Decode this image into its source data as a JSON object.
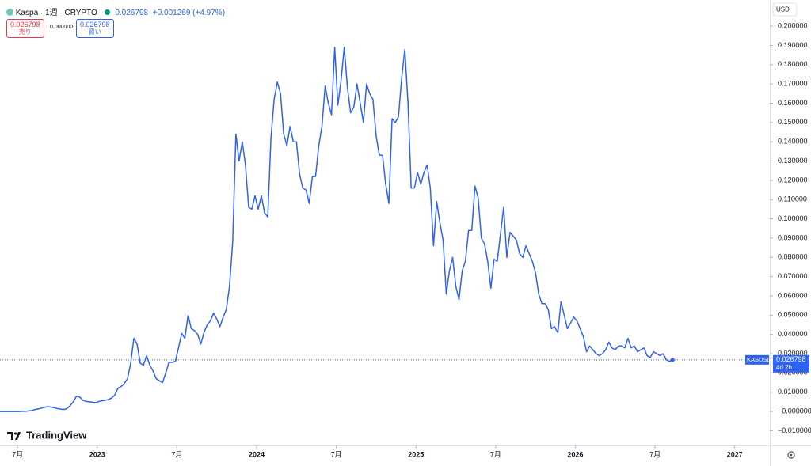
{
  "chart_data": {
    "type": "line",
    "title": "Kaspa · 1週 · CRYPTO",
    "last_price": "0.026798",
    "change": "+0.001269 (+4.97%)",
    "sell_price": "0.026798",
    "sell_label": "売り",
    "spread": "0.000000",
    "buy_price": "0.026798",
    "buy_label": "買い",
    "currency": "USD",
    "ticker": "KASUSD",
    "countdown": "4d 2h",
    "brand": "TradingView",
    "grid": false,
    "x": [
      2022.39,
      2022.41,
      2022.43,
      2022.45,
      2022.47,
      2022.49,
      2022.51,
      2022.53,
      2022.55,
      2022.57,
      2022.59,
      2022.61,
      2022.63,
      2022.65,
      2022.67,
      2022.69,
      2022.71,
      2022.73,
      2022.75,
      2022.77,
      2022.79,
      2022.81,
      2022.83,
      2022.85,
      2022.87,
      2022.89,
      2022.91,
      2022.93,
      2022.95,
      2022.97,
      2022.99,
      2023.01,
      2023.03,
      2023.05,
      2023.07,
      2023.09,
      2023.11,
      2023.13,
      2023.15,
      2023.17,
      2023.19,
      2023.21,
      2023.23,
      2023.25,
      2023.27,
      2023.29,
      2023.31,
      2023.33,
      2023.35,
      2023.37,
      2023.39,
      2023.41,
      2023.43,
      2023.45,
      2023.47,
      2023.49,
      2023.51,
      2023.53,
      2023.55,
      2023.57,
      2023.59,
      2023.61,
      2023.63,
      2023.65,
      2023.67,
      2023.69,
      2023.71,
      2023.73,
      2023.75,
      2023.77,
      2023.79,
      2023.81,
      2023.83,
      2023.85,
      2023.87,
      2023.89,
      2023.91,
      2023.93,
      2023.95,
      2023.97,
      2023.99,
      2024.01,
      2024.03,
      2024.05,
      2024.07,
      2024.09,
      2024.11,
      2024.13,
      2024.15,
      2024.17,
      2024.19,
      2024.21,
      2024.23,
      2024.25,
      2024.27,
      2024.29,
      2024.31,
      2024.33,
      2024.35,
      2024.37,
      2024.39,
      2024.41,
      2024.43,
      2024.45,
      2024.47,
      2024.49,
      2024.51,
      2024.53,
      2024.55,
      2024.57,
      2024.59,
      2024.61,
      2024.63,
      2024.65,
      2024.67,
      2024.69,
      2024.71,
      2024.73,
      2024.75,
      2024.77,
      2024.79,
      2024.81,
      2024.83,
      2024.85,
      2024.87,
      2024.89,
      2024.91,
      2024.93,
      2024.95,
      2024.97,
      2024.99,
      2025.01,
      2025.03,
      2025.05,
      2025.07,
      2025.09,
      2025.11,
      2025.13,
      2025.15,
      2025.17,
      2025.19,
      2025.21,
      2025.23,
      2025.25,
      2025.27,
      2025.29,
      2025.31,
      2025.33,
      2025.35,
      2025.37,
      2025.39,
      2025.41,
      2025.43,
      2025.45,
      2025.47,
      2025.49,
      2025.51,
      2025.53,
      2025.55,
      2025.57,
      2025.59,
      2025.61,
      2025.63,
      2025.65,
      2025.67,
      2025.69,
      2025.71,
      2025.73,
      2025.75,
      2025.77,
      2025.79,
      2025.81,
      2025.83,
      2025.85,
      2025.87,
      2025.89,
      2025.91,
      2025.93,
      2025.95,
      2025.97,
      2025.99,
      2026.01,
      2026.03,
      2026.05,
      2026.07,
      2026.09,
      2026.11,
      2026.13,
      2026.15,
      2026.17,
      2026.19,
      2026.21,
      2026.23,
      2026.25,
      2026.27,
      2026.29,
      2026.31,
      2026.33,
      2026.35,
      2026.37,
      2026.39,
      2026.41,
      2026.43,
      2026.45,
      2026.47,
      2026.49,
      2026.51,
      2026.53,
      2026.55,
      2026.57,
      2026.59,
      2026.61
    ],
    "series": [
      {
        "name": "KASUSD",
        "color": "#2f62f0",
        "values": [
          0,
          0,
          0,
          0,
          0,
          0,
          0,
          0.0001,
          0.0001,
          0.0003,
          0.0005,
          0.001,
          0.0013,
          0.0017,
          0.0022,
          0.0025,
          0.0023,
          0.002,
          0.0015,
          0.0012,
          0.001,
          0.0015,
          0.003,
          0.005,
          0.008,
          0.0075,
          0.0058,
          0.0052,
          0.005,
          0.0048,
          0.0045,
          0.0052,
          0.0055,
          0.0058,
          0.0062,
          0.007,
          0.0085,
          0.012,
          0.013,
          0.0145,
          0.017,
          0.025,
          0.038,
          0.035,
          0.025,
          0.024,
          0.029,
          0.024,
          0.021,
          0.017,
          0.016,
          0.015,
          0.02,
          0.0255,
          0.0255,
          0.026,
          0.033,
          0.0405,
          0.038,
          0.05,
          0.043,
          0.042,
          0.04,
          0.035,
          0.041,
          0.045,
          0.047,
          0.051,
          0.048,
          0.044,
          0.049,
          0.053,
          0.065,
          0.088,
          0.144,
          0.13,
          0.14,
          0.128,
          0.106,
          0.105,
          0.112,
          0.105,
          0.112,
          0.103,
          0.101,
          0.142,
          0.162,
          0.171,
          0.165,
          0.144,
          0.138,
          0.148,
          0.14,
          0.14,
          0.123,
          0.116,
          0.115,
          0.108,
          0.122,
          0.122,
          0.138,
          0.148,
          0.169,
          0.16,
          0.154,
          0.189,
          0.159,
          0.172,
          0.189,
          0.168,
          0.155,
          0.158,
          0.17,
          0.16,
          0.15,
          0.17,
          0.165,
          0.162,
          0.143,
          0.133,
          0.133,
          0.118,
          0.108,
          0.152,
          0.15,
          0.153,
          0.173,
          0.188,
          0.16,
          0.116,
          0.116,
          0.124,
          0.118,
          0.124,
          0.128,
          0.116,
          0.086,
          0.109,
          0.098,
          0.089,
          0.061,
          0.073,
          0.08,
          0.065,
          0.058,
          0.073,
          0.078,
          0.094,
          0.094,
          0.117,
          0.111,
          0.09,
          0.087,
          0.078,
          0.064,
          0.079,
          0.078,
          0.092,
          0.106,
          0.08,
          0.093,
          0.091,
          0.089,
          0.082,
          0.08,
          0.086,
          0.082,
          0.078,
          0.072,
          0.061,
          0.056,
          0.056,
          0.053,
          0.043,
          0.044,
          0.041,
          0.057,
          0.05,
          0.043,
          0.046,
          0.049,
          0.047,
          0.043,
          0.039,
          0.031,
          0.034,
          0.032,
          0.03,
          0.029,
          0.03,
          0.032,
          0.036,
          0.033,
          0.032,
          0.034,
          0.034,
          0.033,
          0.038,
          0.033,
          0.034,
          0.031,
          0.032,
          0.033,
          0.029,
          0.028,
          0.031,
          0.03,
          0.029,
          0.03,
          0.027,
          0.026,
          0.026798
        ]
      }
    ],
    "xlim": [
      2022.39,
      2027.22
    ],
    "xticks": [
      {
        "value": 2022.5,
        "label": "7月"
      },
      2023,
      {
        "value": 2023.5,
        "label": "7月"
      },
      2024,
      {
        "value": 2024.5,
        "label": "7月"
      },
      2025,
      {
        "value": 2025.5,
        "label": "7月"
      },
      2026,
      {
        "value": 2026.5,
        "label": "7月"
      },
      2027
    ],
    "ylim": [
      -0.0164,
      0.2136
    ],
    "yticks": [
      {
        "value": -0.01,
        "label": "−0.010000"
      },
      {
        "value": 0,
        "label": "−0.000000"
      },
      {
        "value": 0.01,
        "label": "0.010000"
      },
      {
        "value": 0.02,
        "label": "0.020000"
      },
      {
        "value": 0.03,
        "label": "0.030000"
      },
      {
        "value": 0.04,
        "label": "0.040000"
      },
      {
        "value": 0.05,
        "label": "0.050000"
      },
      {
        "value": 0.06,
        "label": "0.060000"
      },
      {
        "value": 0.07,
        "label": "0.070000"
      },
      {
        "value": 0.08,
        "label": "0.080000"
      },
      {
        "value": 0.09,
        "label": "0.090000"
      },
      {
        "value": 0.1,
        "label": "0.100000"
      },
      {
        "value": 0.11,
        "label": "0.110000"
      },
      {
        "value": 0.12,
        "label": "0.120000"
      },
      {
        "value": 0.13,
        "label": "0.130000"
      },
      {
        "value": 0.14,
        "label": "0.140000"
      },
      {
        "value": 0.15,
        "label": "0.150000"
      },
      {
        "value": 0.16,
        "label": "0.160000"
      },
      {
        "value": 0.17,
        "label": "0.170000"
      },
      {
        "value": 0.18,
        "label": "0.180000"
      },
      {
        "value": 0.19,
        "label": "0.190000"
      },
      {
        "value": 0.2,
        "label": "0.200000"
      }
    ]
  }
}
